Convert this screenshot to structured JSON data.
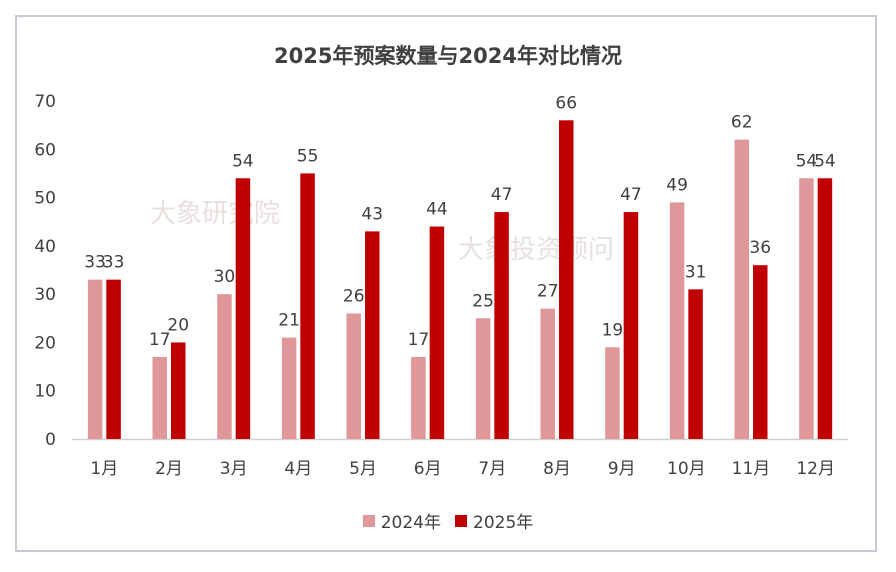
{
  "chart_data": {
    "type": "bar",
    "title": "2025年预案数量与2024年对比情况",
    "categories": [
      "1月",
      "2月",
      "3月",
      "4月",
      "5月",
      "6月",
      "7月",
      "8月",
      "9月",
      "10月",
      "11月",
      "12月"
    ],
    "series": [
      {
        "name": "2024年",
        "color": "#e0979a",
        "values": [
          33,
          17,
          30,
          21,
          26,
          17,
          25,
          27,
          19,
          49,
          62,
          54
        ]
      },
      {
        "name": "2025年",
        "color": "#c00000",
        "values": [
          33,
          20,
          54,
          55,
          43,
          44,
          47,
          66,
          47,
          31,
          36,
          54
        ]
      }
    ],
    "ylim": [
      0,
      70
    ],
    "yticks": [
      0,
      10,
      20,
      30,
      40,
      50,
      60,
      70
    ],
    "xlabel": "",
    "ylabel": "",
    "grid": false,
    "legend_position": "bottom"
  },
  "watermarks": [
    "大象研究院",
    "大象投资顾问"
  ]
}
